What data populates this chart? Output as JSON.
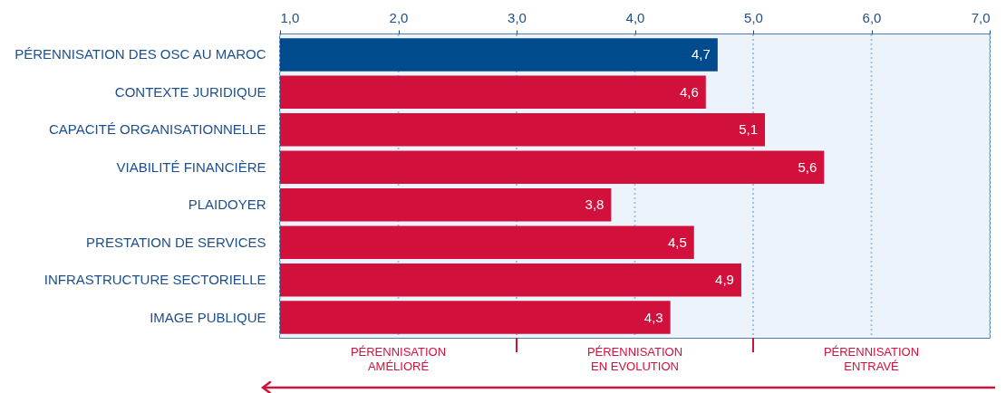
{
  "chart_data": {
    "type": "bar",
    "orientation": "horizontal",
    "categories": [
      "PÉRENNISATION DES OSC AU MAROC",
      "CONTEXTE JURIDIQUE",
      "CAPACITÉ ORGANISATIONNELLE",
      "VIABILITÉ FINANCIÈRE",
      "PLAIDOYER",
      "PRESTATION DE SERVICES",
      "INFRASTRUCTURE SECTORIELLE",
      "IMAGE PUBLIQUE"
    ],
    "values": [
      4.7,
      4.6,
      5.1,
      5.6,
      3.8,
      4.5,
      4.9,
      4.3
    ],
    "colors": [
      "#004b8d",
      "#d2103c",
      "#d2103c",
      "#d2103c",
      "#d2103c",
      "#d2103c",
      "#d2103c",
      "#d2103c"
    ],
    "value_labels": [
      "4,7",
      "4,6",
      "5,1",
      "5,6",
      "3,8",
      "4,5",
      "4,9",
      "4,3"
    ],
    "xlim": [
      1,
      7
    ],
    "xticks": [
      {
        "value": 1,
        "label": "1,0"
      },
      {
        "value": 2,
        "label": "2,0"
      },
      {
        "value": 3,
        "label": "3,0"
      },
      {
        "value": 4,
        "label": "4,0"
      },
      {
        "value": 5,
        "label": "5,0"
      },
      {
        "value": 6,
        "label": "6,0"
      },
      {
        "value": 7,
        "label": "7,0"
      }
    ],
    "grid": "x",
    "bands": [
      {
        "axis": "x",
        "from": 1,
        "to": 3,
        "label": "PÉRENNISATION\nAMÉLIORÉ",
        "color": "#edf3fa"
      },
      {
        "axis": "x",
        "from": 3,
        "to": 5,
        "label": "PÉRENNISATION\nEN EVOLUTION",
        "color": "#edf3fa"
      },
      {
        "axis": "x",
        "from": 5,
        "to": 7,
        "label": "PÉRENNISATION\nENTRAVÉ",
        "color": "#edf3fa"
      }
    ]
  }
}
